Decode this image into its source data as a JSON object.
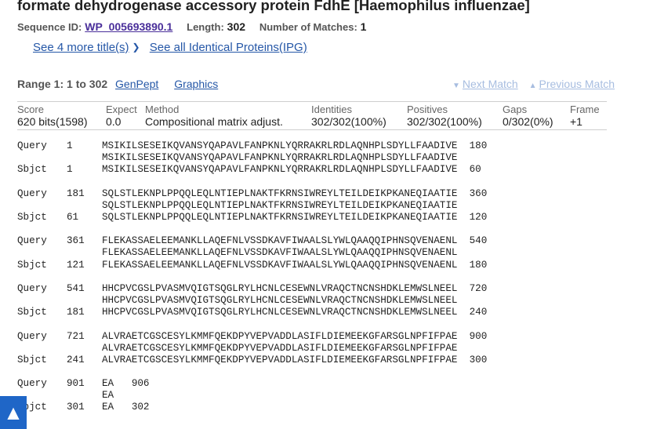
{
  "title": "formate dehydrogenase accessory protein FdhE [Haemophilus influenzae]",
  "meta": {
    "seq_label": "Sequence ID:",
    "seq_id": "WP_005693890.1",
    "length_label": "Length:",
    "length_value": "302",
    "matches_label": "Number of Matches:",
    "matches_value": "1"
  },
  "links": {
    "more_titles": "See 4 more title(s)",
    "identical": "See all Identical Proteins(IPG)"
  },
  "range": {
    "label": "Range 1: 1 to 302",
    "genpept": "GenPept",
    "graphics": "Graphics",
    "next": "Next Match",
    "prev": "Previous Match"
  },
  "stats": {
    "headers": [
      "Score",
      "Expect",
      "Method",
      "Identities",
      "Positives",
      "Gaps",
      "Frame"
    ],
    "values": [
      "620 bits(1598)",
      "0.0",
      "Compositional matrix adjust.",
      "302/302(100%)",
      "302/302(100%)",
      "0/302(0%)",
      "+1"
    ]
  },
  "alignment": [
    {
      "q_start": "1",
      "q_seq": "MSIKILSESEIKQVANSYQAPAVLFANPKNLYQRRAKRLRDLAQNHPLSDYLLFAADIVE",
      "q_end": "180",
      "mid": "MSIKILSESEIKQVANSYQAPAVLFANPKNLYQRRAKRLRDLAQNHPLSDYLLFAADIVE",
      "s_start": "1",
      "s_seq": "MSIKILSESEIKQVANSYQAPAVLFANPKNLYQRRAKRLRDLAQNHPLSDYLLFAADIVE",
      "s_end": "60"
    },
    {
      "q_start": "181",
      "q_seq": "SQLSTLEKNPLPPQQLEQLNTIEPLNAKTFKRNSIWREYLTEILDEIKPKANEQIAATIE",
      "q_end": "360",
      "mid": "SQLSTLEKNPLPPQQLEQLNTIEPLNAKTFKRNSIWREYLTEILDEIKPKANEQIAATIE",
      "s_start": "61",
      "s_seq": "SQLSTLEKNPLPPQQLEQLNTIEPLNAKTFKRNSIWREYLTEILDEIKPKANEQIAATIE",
      "s_end": "120"
    },
    {
      "q_start": "361",
      "q_seq": "FLEKASSAELEEMANKLLAQEFNLVSSDKAVFIWAALSLYWLQAAQQIPHNSQVENAENL",
      "q_end": "540",
      "mid": "FLEKASSAELEEMANKLLAQEFNLVSSDKAVFIWAALSLYWLQAAQQIPHNSQVENAENL",
      "s_start": "121",
      "s_seq": "FLEKASSAELEEMANKLLAQEFNLVSSDKAVFIWAALSLYWLQAAQQIPHNSQVENAENL",
      "s_end": "180"
    },
    {
      "q_start": "541",
      "q_seq": "HHCPVCGSLPVASMVQIGTSQGLRYLHCNLCESEWNLVRAQCTNCNSHDKLEMWSLNEEL",
      "q_end": "720",
      "mid": "HHCPVCGSLPVASMVQIGTSQGLRYLHCNLCESEWNLVRAQCTNCNSHDKLEMWSLNEEL",
      "s_start": "181",
      "s_seq": "HHCPVCGSLPVASMVQIGTSQGLRYLHCNLCESEWNLVRAQCTNCNSHDKLEMWSLNEEL",
      "s_end": "240"
    },
    {
      "q_start": "721",
      "q_seq": "ALVRAETCGSCESYLKMMFQEKDPYVEPVADDLASIFLDIEMEEKGFARSGLNPFIFPAE",
      "q_end": "900",
      "mid": "ALVRAETCGSCESYLKMMFQEKDPYVEPVADDLASIFLDIEMEEKGFARSGLNPFIFPAE",
      "s_start": "241",
      "s_seq": "ALVRAETCGSCESYLKMMFQEKDPYVEPVADDLASIFLDIEMEEKGFARSGLNPFIFPAE",
      "s_end": "300"
    },
    {
      "q_start": "901",
      "q_seq": "EA",
      "q_end": "906",
      "mid": "EA",
      "s_start": "301",
      "s_seq": "EA",
      "s_end": "302"
    }
  ],
  "labels": {
    "query": "Query",
    "sbjct": "Sbjct"
  },
  "icons": {
    "chevron": "chevron-down-icon",
    "next": "triangle-down-icon",
    "prev": "triangle-up-icon",
    "scroll_top": "arrow-up-icon"
  },
  "colors": {
    "link": "#2557a7",
    "seq_link": "#4a2f9a",
    "disabled_link": "#a7bde0",
    "scroll_button": "#1f66c7"
  }
}
